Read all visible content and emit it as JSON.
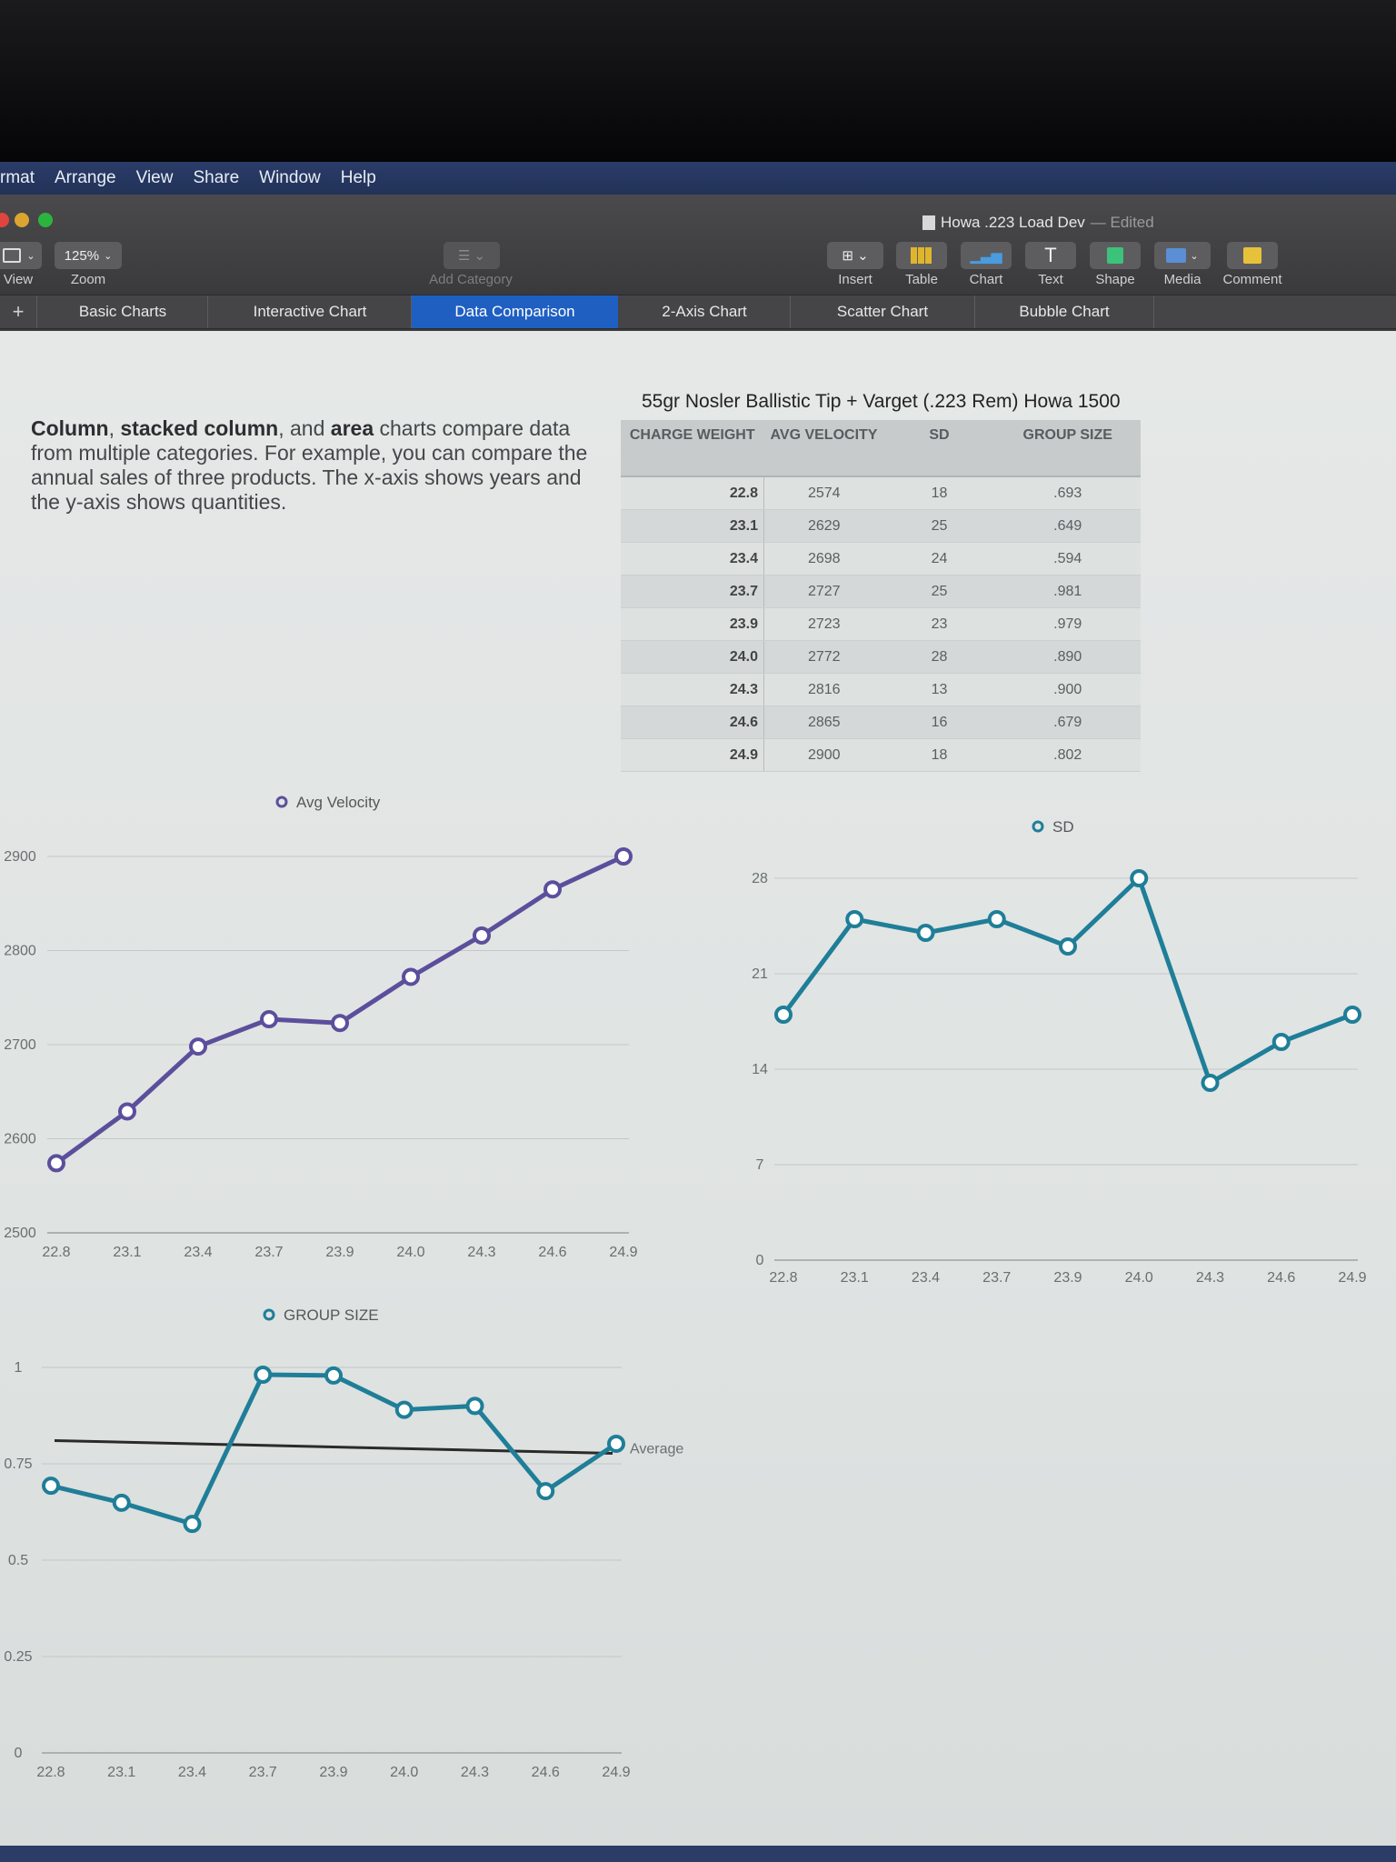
{
  "menu": [
    "rmat",
    "Arrange",
    "View",
    "Share",
    "Window",
    "Help"
  ],
  "window": {
    "doc_title": "Howa .223 Load Dev",
    "doc_status": "— Edited"
  },
  "toolbar": {
    "view_label": "View",
    "zoom_value": "125%",
    "zoom_label": "Zoom",
    "add_category_label": "Add Category",
    "insert_label": "Insert",
    "table_label": "Table",
    "chart_label": "Chart",
    "text_label": "Text",
    "shape_label": "Shape",
    "media_label": "Media",
    "comment_label": "Comment"
  },
  "tabs": [
    "Basic Charts",
    "Interactive Chart",
    "Data Comparison",
    "2-Axis Chart",
    "Scatter Chart",
    "Bubble Chart"
  ],
  "description": {
    "w1": "Column",
    "t1": ", ",
    "w2": "stacked column",
    "t2": ", and ",
    "w3": "area",
    "t3": " charts compare data from multiple categories. For example, you can compare the annual sales of three products. The x-axis shows years and the y-axis shows quantities."
  },
  "table": {
    "title": "55gr Nosler Ballistic Tip + Varget (.223 Rem) Howa 1500",
    "headers": [
      "CHARGE WEIGHT",
      "AVG VELOCITY",
      "SD",
      "GROUP SIZE"
    ],
    "rows": [
      [
        "22.8",
        "2574",
        "18",
        ".693"
      ],
      [
        "23.1",
        "2629",
        "25",
        ".649"
      ],
      [
        "23.4",
        "2698",
        "24",
        ".594"
      ],
      [
        "23.7",
        "2727",
        "25",
        ".981"
      ],
      [
        "23.9",
        "2723",
        "23",
        ".979"
      ],
      [
        "24.0",
        "2772",
        "28",
        ".890"
      ],
      [
        "24.3",
        "2816",
        "13",
        ".900"
      ],
      [
        "24.6",
        "2865",
        "16",
        ".679"
      ],
      [
        "24.9",
        "2900",
        "18",
        ".802"
      ]
    ]
  },
  "colors": {
    "velocity": "#5b4f9c",
    "sd": "#1f7e98",
    "group": "#1f7e98",
    "average": "#2a2a2a"
  },
  "chart_data": [
    {
      "type": "line",
      "categories": [
        "22.8",
        "23.1",
        "23.4",
        "23.7",
        "23.9",
        "24.0",
        "24.3",
        "24.6",
        "24.9"
      ],
      "series": [
        {
          "name": "Avg Velocity",
          "values": [
            2574,
            2629,
            2698,
            2727,
            2723,
            2772,
            2816,
            2865,
            2900
          ]
        }
      ],
      "yticks": [
        "2500",
        "2600",
        "2700",
        "2800",
        "2900"
      ],
      "ylim": [
        2500,
        2900
      ],
      "legend": "top-left"
    },
    {
      "type": "line",
      "categories": [
        "22.8",
        "23.1",
        "23.4",
        "23.7",
        "23.9",
        "24.0",
        "24.3",
        "24.6",
        "24.9"
      ],
      "series": [
        {
          "name": "SD",
          "values": [
            18,
            25,
            24,
            25,
            23,
            28,
            13,
            16,
            18
          ]
        }
      ],
      "yticks": [
        "0",
        "7",
        "14",
        "21",
        "28"
      ],
      "ylim": [
        0,
        28
      ],
      "legend": "top-right"
    },
    {
      "type": "line",
      "categories": [
        "22.8",
        "23.1",
        "23.4",
        "23.7",
        "23.9",
        "24.0",
        "24.3",
        "24.6",
        "24.9"
      ],
      "series": [
        {
          "name": "GROUP SIZE",
          "values": [
            0.693,
            0.649,
            0.594,
            0.981,
            0.979,
            0.89,
            0.9,
            0.679,
            0.802
          ]
        }
      ],
      "yticks": [
        "0",
        "0.25",
        "0.5",
        "0.75",
        "1"
      ],
      "ylim": [
        0,
        1
      ],
      "reference_line": {
        "label": "Average",
        "value": 0.796
      },
      "legend": "top-left"
    }
  ]
}
